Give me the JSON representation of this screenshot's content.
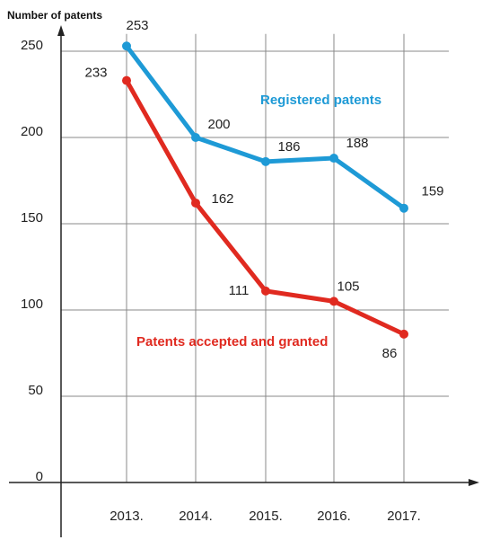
{
  "chart_data": {
    "type": "line",
    "title": "Number of patents",
    "categories": [
      "2013.",
      "2014.",
      "2015.",
      "2016.",
      "2017."
    ],
    "series": [
      {
        "name": "Registered patents",
        "color": "#1e9ad6",
        "values": [
          253,
          200,
          186,
          188,
          159
        ]
      },
      {
        "name": "Patents accepted and granted",
        "color": "#e02a20",
        "values": [
          233,
          162,
          111,
          105,
          86
        ]
      }
    ],
    "ylim": [
      0,
      260
    ],
    "yticks": [
      0,
      50,
      100,
      150,
      200,
      250
    ],
    "grid": true
  }
}
